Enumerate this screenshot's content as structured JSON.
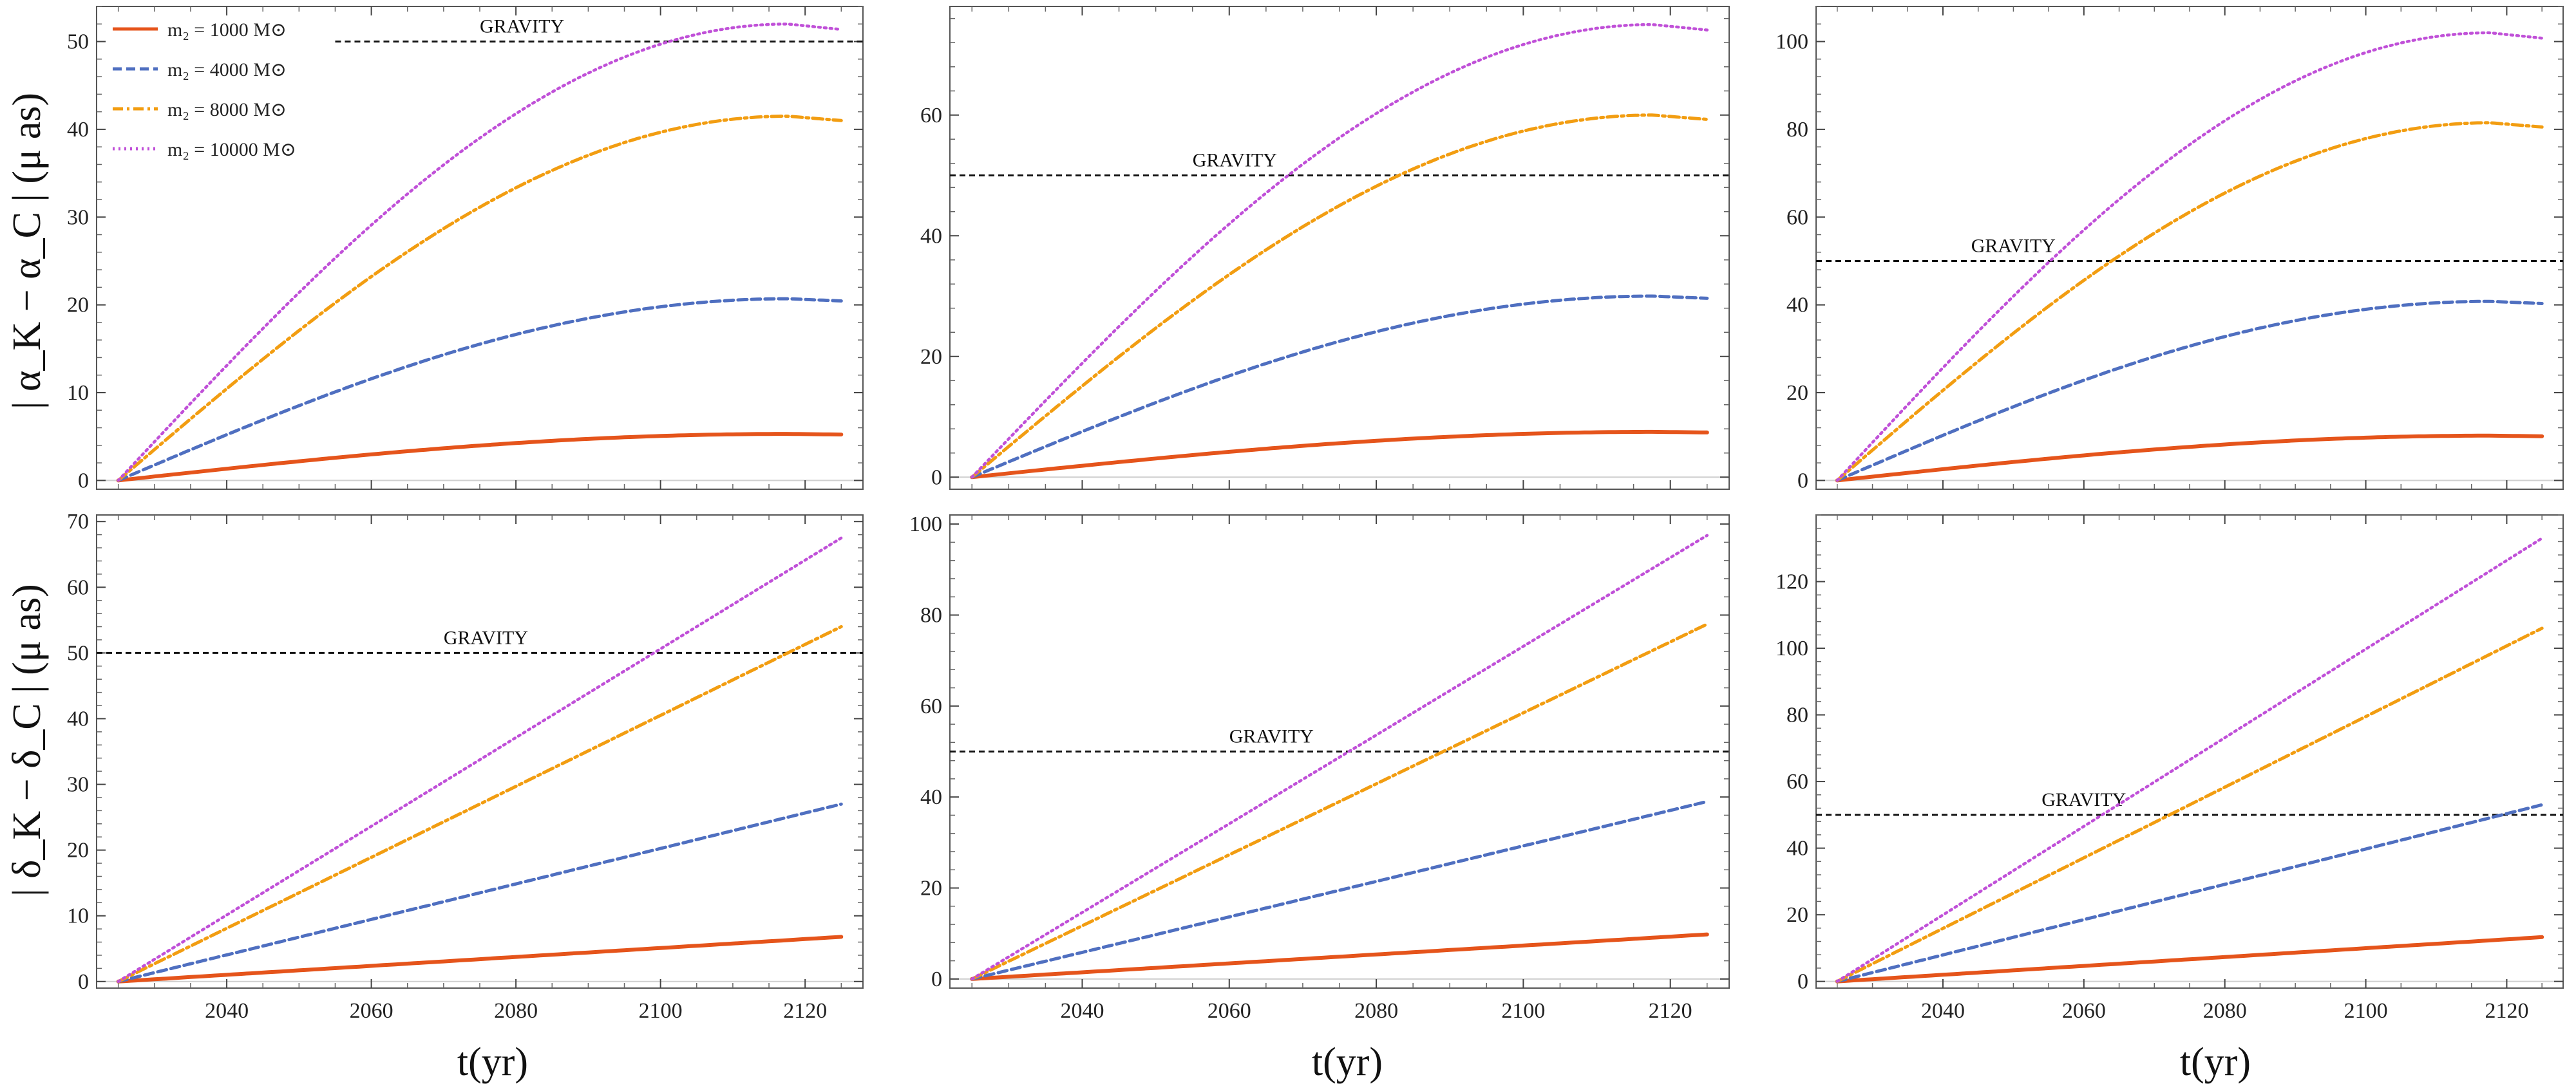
{
  "figure": {
    "xlabel": "t(yr)",
    "ylabel_top": "| α_K − α_C |  (μ as)",
    "ylabel_bottom": "| δ_K − δ_C |  (μ as)"
  },
  "legend": [
    {
      "label": "m₂ = 1000 M⊙",
      "color": "#e5541b",
      "dash": "solid"
    },
    {
      "label": "m₂ = 4000 M⊙",
      "color": "#4f6fc0",
      "dash": "dashed"
    },
    {
      "label": "m₂ = 8000 M⊙",
      "color": "#f29d11",
      "dash": "dashdot"
    },
    {
      "label": "m₂ = 10000 M⊙",
      "color": "#c050d8",
      "dash": "dotted"
    }
  ],
  "chart_data": [
    {
      "type": "line",
      "panel": "top-left",
      "ylabel": "| α_K − α_C |  (μ as)",
      "xlim": [
        2022,
        2128
      ],
      "ylim": [
        -1,
        54
      ],
      "yticks": [
        0,
        10,
        20,
        30,
        40,
        50
      ],
      "xticks": [
        2040,
        2060,
        2080,
        2100,
        2120
      ],
      "show_xtick_labels": false,
      "reference": {
        "label": "GRAVITY",
        "value": 50,
        "x_start": 2055,
        "label_x": 2075
      },
      "t0": 2025,
      "t1": 2125,
      "shape": "sine",
      "series": [
        {
          "name": "m₂ = 1000 M⊙",
          "final": 5.3
        },
        {
          "name": "m₂ = 4000 M⊙",
          "final": 20.7
        },
        {
          "name": "m₂ = 8000 M⊙",
          "final": 41.5
        },
        {
          "name": "m₂ = 10000 M⊙",
          "final": 52.0
        }
      ]
    },
    {
      "type": "line",
      "panel": "top-middle",
      "ylabel": "",
      "xlim": [
        2022,
        2128
      ],
      "ylim": [
        -2,
        78
      ],
      "yticks": [
        0,
        20,
        40,
        60
      ],
      "xticks": [
        2040,
        2060,
        2080,
        2100,
        2120
      ],
      "show_xtick_labels": false,
      "reference": {
        "label": "GRAVITY",
        "value": 50,
        "x_start": 2022,
        "label_x": 2055
      },
      "t0": 2025,
      "t1": 2125,
      "shape": "sine",
      "series": [
        {
          "name": "m₂ = 1000 M⊙",
          "final": 7.5
        },
        {
          "name": "m₂ = 4000 M⊙",
          "final": 30.0
        },
        {
          "name": "m₂ = 8000 M⊙",
          "final": 60.0
        },
        {
          "name": "m₂ = 10000 M⊙",
          "final": 75.0
        }
      ]
    },
    {
      "type": "line",
      "panel": "top-right",
      "ylabel": "",
      "xlim": [
        2022,
        2128
      ],
      "ylim": [
        -2,
        108
      ],
      "yticks": [
        0,
        20,
        40,
        60,
        80,
        100
      ],
      "xticks": [
        2040,
        2060,
        2080,
        2100,
        2120
      ],
      "show_xtick_labels": false,
      "reference": {
        "label": "GRAVITY",
        "value": 50,
        "x_start": 2022,
        "label_x": 2044
      },
      "t0": 2025,
      "t1": 2125,
      "shape": "sine",
      "series": [
        {
          "name": "m₂ = 1000 M⊙",
          "final": 10.2
        },
        {
          "name": "m₂ = 4000 M⊙",
          "final": 40.8
        },
        {
          "name": "m₂ = 8000 M⊙",
          "final": 81.5
        },
        {
          "name": "m₂ = 10000 M⊙",
          "final": 102.0
        }
      ]
    },
    {
      "type": "line",
      "panel": "bottom-left",
      "ylabel": "| δ_K − δ_C |  (μ as)",
      "xlim": [
        2022,
        2128
      ],
      "ylim": [
        -1,
        71
      ],
      "yticks": [
        0,
        10,
        20,
        30,
        40,
        50,
        60,
        70
      ],
      "xticks": [
        2040,
        2060,
        2080,
        2100,
        2120
      ],
      "show_xtick_labels": true,
      "reference": {
        "label": "GRAVITY",
        "value": 50,
        "x_start": 2022,
        "label_x": 2070
      },
      "t0": 2025,
      "t1": 2125,
      "shape": "linear",
      "series": [
        {
          "name": "m₂ = 1000 M⊙",
          "final": 6.8
        },
        {
          "name": "m₂ = 4000 M⊙",
          "final": 27.0
        },
        {
          "name": "m₂ = 8000 M⊙",
          "final": 54.0
        },
        {
          "name": "m₂ = 10000 M⊙",
          "final": 67.5
        }
      ]
    },
    {
      "type": "line",
      "panel": "bottom-middle",
      "ylabel": "",
      "xlim": [
        2022,
        2128
      ],
      "ylim": [
        -2,
        102
      ],
      "yticks": [
        0,
        20,
        40,
        60,
        80,
        100
      ],
      "xticks": [
        2040,
        2060,
        2080,
        2100,
        2120
      ],
      "show_xtick_labels": true,
      "reference": {
        "label": "GRAVITY",
        "value": 50,
        "x_start": 2022,
        "label_x": 2060
      },
      "t0": 2025,
      "t1": 2125,
      "shape": "linear",
      "series": [
        {
          "name": "m₂ = 1000 M⊙",
          "final": 9.8
        },
        {
          "name": "m₂ = 4000 M⊙",
          "final": 39.0
        },
        {
          "name": "m₂ = 8000 M⊙",
          "final": 78.0
        },
        {
          "name": "m₂ = 10000 M⊙",
          "final": 97.5
        }
      ]
    },
    {
      "type": "line",
      "panel": "bottom-right",
      "ylabel": "",
      "xlim": [
        2022,
        2128
      ],
      "ylim": [
        -2,
        140
      ],
      "yticks": [
        0,
        20,
        40,
        60,
        80,
        100,
        120
      ],
      "xticks": [
        2040,
        2060,
        2080,
        2100,
        2120
      ],
      "show_xtick_labels": true,
      "reference": {
        "label": "GRAVITY",
        "value": 50,
        "x_start": 2022,
        "label_x": 2054
      },
      "t0": 2025,
      "t1": 2125,
      "shape": "linear",
      "series": [
        {
          "name": "m₂ = 1000 M⊙",
          "final": 13.3
        },
        {
          "name": "m₂ = 4000 M⊙",
          "final": 53.0
        },
        {
          "name": "m₂ = 8000 M⊙",
          "final": 106.0
        },
        {
          "name": "m₂ = 10000 M⊙",
          "final": 133.0
        }
      ]
    }
  ]
}
